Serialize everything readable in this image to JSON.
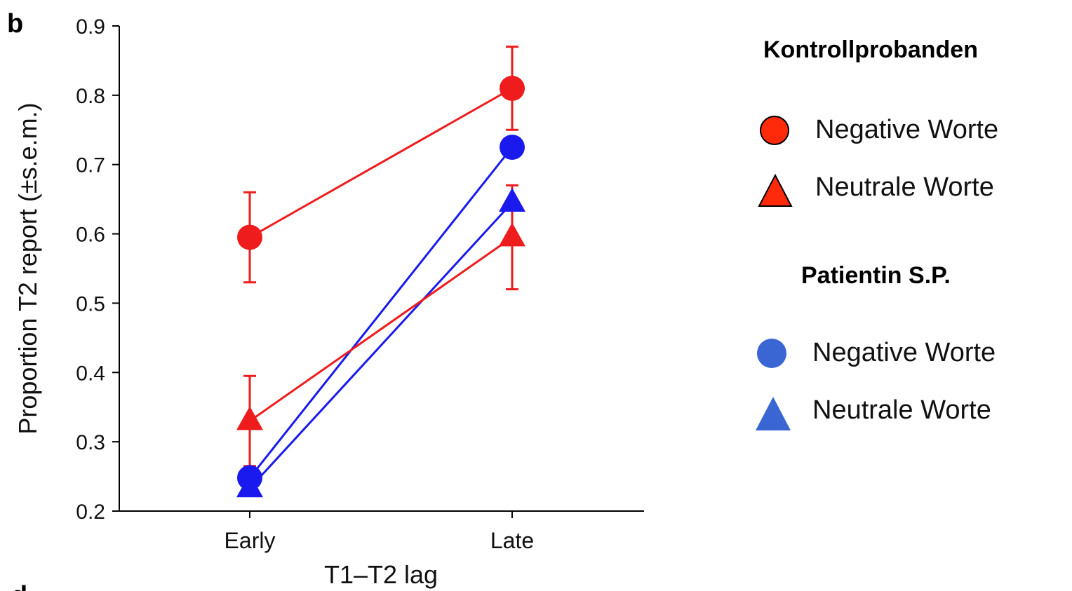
{
  "panel_label": "b",
  "panel_label_next": "d",
  "chart_data": {
    "type": "line",
    "xlabel": "T1–T2 lag",
    "ylabel": "Proportion  T2 report (±s.e.m.)",
    "categories": [
      "Early",
      "Late"
    ],
    "ylim": [
      0.2,
      0.9
    ],
    "yticks": [
      "0.2",
      "0.3",
      "0.4",
      "0.5",
      "0.6",
      "0.7",
      "0.8",
      "0.9"
    ],
    "grid": false,
    "legend_placement": "right",
    "series": [
      {
        "name": "Negative Worte",
        "group": "Kontrollprobanden",
        "color": "#ee1c1c",
        "marker": "circle",
        "values": [
          0.595,
          0.81
        ],
        "err": [
          0.065,
          0.06
        ]
      },
      {
        "name": "Neutrale Worte",
        "group": "Kontrollprobanden",
        "color": "#ee1c1c",
        "marker": "triangle",
        "values": [
          0.33,
          0.595
        ],
        "err": [
          0.065,
          0.075
        ]
      },
      {
        "name": "Negative Worte",
        "group": "Patientin S.P.",
        "color": "#1a1aee",
        "marker": "circle",
        "values": [
          0.248,
          0.725
        ]
      },
      {
        "name": "Neutrale Worte",
        "group": "Patientin S.P.",
        "color": "#1a1aee",
        "marker": "triangle",
        "values": [
          0.233,
          0.645
        ]
      }
    ]
  },
  "legend": {
    "group1": {
      "title": "Kontrollprobanden",
      "color": "#ff3a12",
      "items": [
        {
          "label": "Negative Worte",
          "marker": "circle",
          "fill": "#ff2a0a"
        },
        {
          "label": "Neutrale Worte",
          "marker": "triangle",
          "fill": "#ff2a0a"
        }
      ]
    },
    "group2": {
      "title": "Patientin S.P.",
      "color": "#3b6fd6",
      "items": [
        {
          "label": "Negative Worte",
          "marker": "circle",
          "fill": "#3a66d4"
        },
        {
          "label": "Neutrale Worte",
          "marker": "triangle",
          "fill": "#3a66d4"
        }
      ]
    }
  }
}
